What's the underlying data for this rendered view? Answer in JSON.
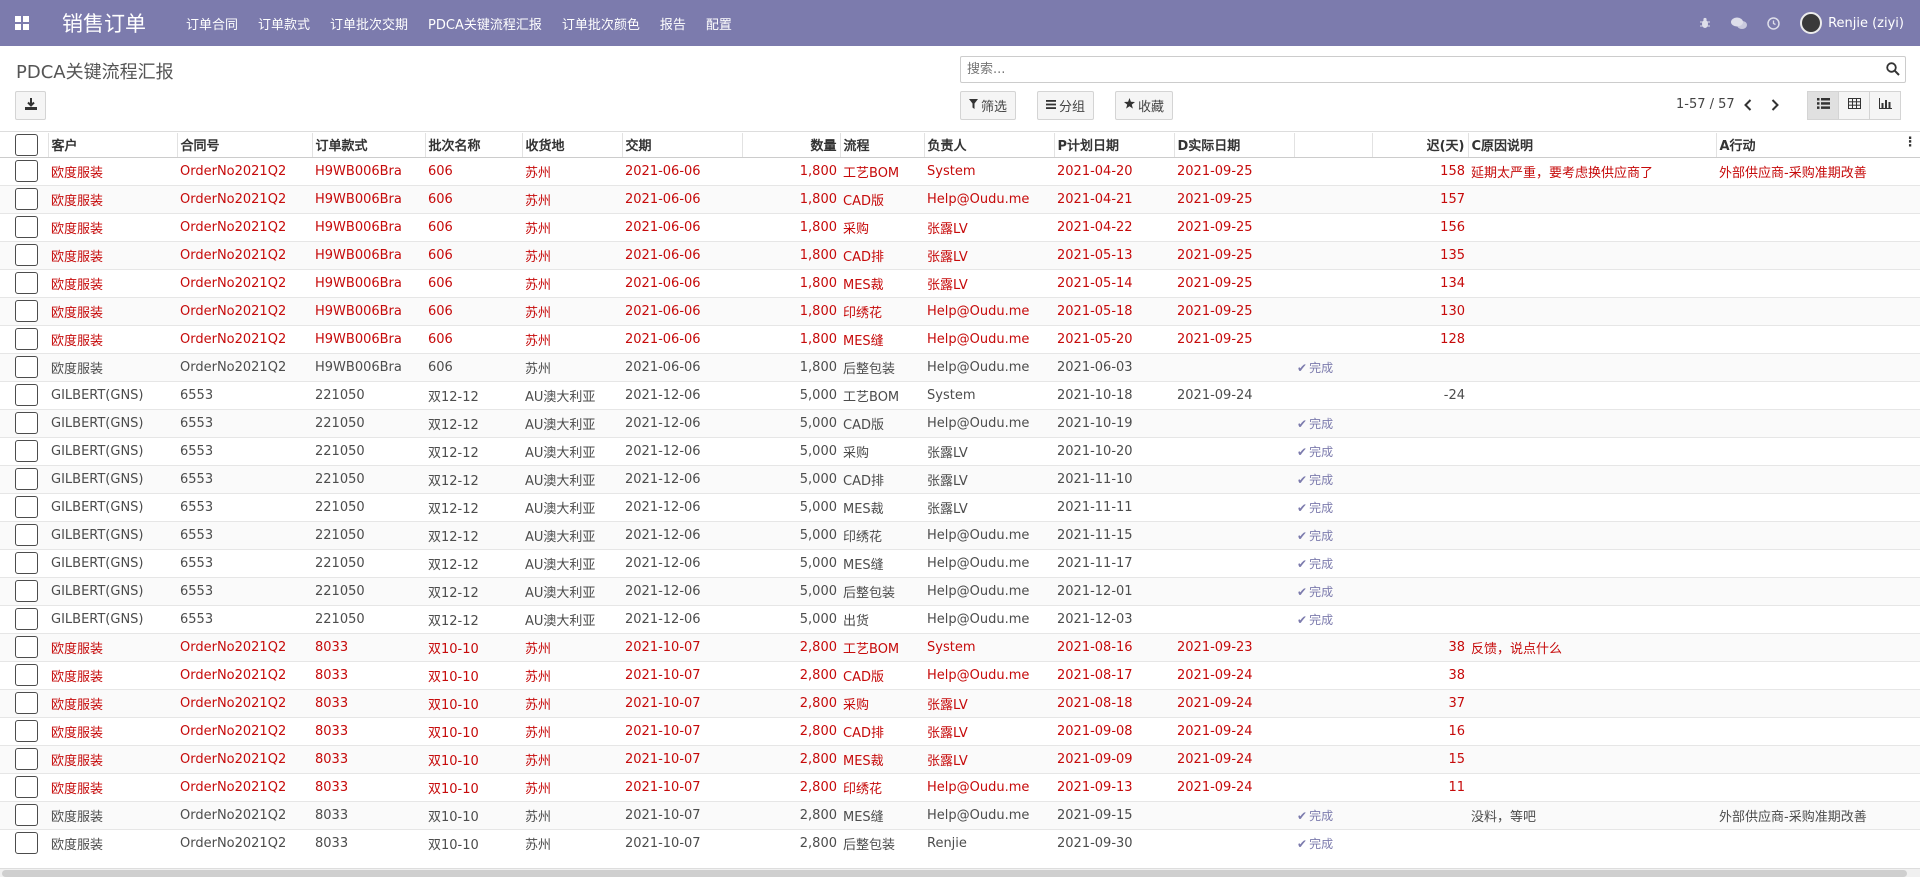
{
  "app": {
    "brand": "销售订单",
    "menu": [
      "订单合同",
      "订单款式",
      "订单批次交期",
      "PDCA关键流程汇报",
      "订单批次颜色",
      "报告",
      "配置"
    ],
    "user": "Renjie (ziyi)",
    "icons": [
      "apps-icon",
      "bug-icon",
      "chat-icon",
      "clock-icon"
    ]
  },
  "control": {
    "breadcrumb": "PDCA关键流程汇报",
    "search_placeholder": "搜索...",
    "filter_label": "筛选",
    "group_label": "分组",
    "favorite_label": "收藏",
    "pager": "1-57 / 57"
  },
  "columns": [
    "客户",
    "合同号",
    "订单款式",
    "批次名称",
    "收货地",
    "交期",
    "数量",
    "流程",
    "负责人",
    "P计划日期",
    "D实际日期",
    "",
    "迟(天)",
    "C原因说明",
    "A行动"
  ],
  "rows": [
    {
      "red": true,
      "cells": [
        "欧度服装",
        "OrderNo2021Q2",
        "H9WB006Bra",
        "606",
        "苏州",
        "2021-06-06",
        "1,800",
        "工艺BOM",
        "System",
        "2021-04-20",
        "2021-09-25",
        "",
        "158",
        "延期太严重，要考虑换供应商了",
        "外部供应商-采购准期改善"
      ]
    },
    {
      "red": true,
      "cells": [
        "欧度服装",
        "OrderNo2021Q2",
        "H9WB006Bra",
        "606",
        "苏州",
        "2021-06-06",
        "1,800",
        "CAD版",
        "Help@Oudu.me",
        "2021-04-21",
        "2021-09-25",
        "",
        "157",
        "",
        ""
      ]
    },
    {
      "red": true,
      "cells": [
        "欧度服装",
        "OrderNo2021Q2",
        "H9WB006Bra",
        "606",
        "苏州",
        "2021-06-06",
        "1,800",
        "采购",
        "张露LV",
        "2021-04-22",
        "2021-09-25",
        "",
        "156",
        "",
        ""
      ]
    },
    {
      "red": true,
      "cells": [
        "欧度服装",
        "OrderNo2021Q2",
        "H9WB006Bra",
        "606",
        "苏州",
        "2021-06-06",
        "1,800",
        "CAD排",
        "张露LV",
        "2021-05-13",
        "2021-09-25",
        "",
        "135",
        "",
        ""
      ]
    },
    {
      "red": true,
      "cells": [
        "欧度服装",
        "OrderNo2021Q2",
        "H9WB006Bra",
        "606",
        "苏州",
        "2021-06-06",
        "1,800",
        "MES裁",
        "张露LV",
        "2021-05-14",
        "2021-09-25",
        "",
        "134",
        "",
        ""
      ]
    },
    {
      "red": true,
      "cells": [
        "欧度服装",
        "OrderNo2021Q2",
        "H9WB006Bra",
        "606",
        "苏州",
        "2021-06-06",
        "1,800",
        "印绣花",
        "Help@Oudu.me",
        "2021-05-18",
        "2021-09-25",
        "",
        "130",
        "",
        ""
      ]
    },
    {
      "red": true,
      "cells": [
        "欧度服装",
        "OrderNo2021Q2",
        "H9WB006Bra",
        "606",
        "苏州",
        "2021-06-06",
        "1,800",
        "MES缝",
        "Help@Oudu.me",
        "2021-05-20",
        "2021-09-25",
        "",
        "128",
        "",
        ""
      ]
    },
    {
      "red": false,
      "cells": [
        "欧度服装",
        "OrderNo2021Q2",
        "H9WB006Bra",
        "606",
        "苏州",
        "2021-06-06",
        "1,800",
        "后整包装",
        "Help@Oudu.me",
        "2021-06-03",
        "",
        "完成",
        "",
        "",
        ""
      ]
    },
    {
      "red": false,
      "cells": [
        "GILBERT(GNS)",
        "6553",
        "221050",
        "双12-12",
        "AU澳大利亚",
        "2021-12-06",
        "5,000",
        "工艺BOM",
        "System",
        "2021-10-18",
        "2021-09-24",
        "",
        "-24",
        "",
        ""
      ]
    },
    {
      "red": false,
      "cells": [
        "GILBERT(GNS)",
        "6553",
        "221050",
        "双12-12",
        "AU澳大利亚",
        "2021-12-06",
        "5,000",
        "CAD版",
        "Help@Oudu.me",
        "2021-10-19",
        "",
        "完成",
        "",
        "",
        ""
      ]
    },
    {
      "red": false,
      "cells": [
        "GILBERT(GNS)",
        "6553",
        "221050",
        "双12-12",
        "AU澳大利亚",
        "2021-12-06",
        "5,000",
        "采购",
        "张露LV",
        "2021-10-20",
        "",
        "完成",
        "",
        "",
        ""
      ]
    },
    {
      "red": false,
      "cells": [
        "GILBERT(GNS)",
        "6553",
        "221050",
        "双12-12",
        "AU澳大利亚",
        "2021-12-06",
        "5,000",
        "CAD排",
        "张露LV",
        "2021-11-10",
        "",
        "完成",
        "",
        "",
        ""
      ]
    },
    {
      "red": false,
      "cells": [
        "GILBERT(GNS)",
        "6553",
        "221050",
        "双12-12",
        "AU澳大利亚",
        "2021-12-06",
        "5,000",
        "MES裁",
        "张露LV",
        "2021-11-11",
        "",
        "完成",
        "",
        "",
        ""
      ]
    },
    {
      "red": false,
      "cells": [
        "GILBERT(GNS)",
        "6553",
        "221050",
        "双12-12",
        "AU澳大利亚",
        "2021-12-06",
        "5,000",
        "印绣花",
        "Help@Oudu.me",
        "2021-11-15",
        "",
        "完成",
        "",
        "",
        ""
      ]
    },
    {
      "red": false,
      "cells": [
        "GILBERT(GNS)",
        "6553",
        "221050",
        "双12-12",
        "AU澳大利亚",
        "2021-12-06",
        "5,000",
        "MES缝",
        "Help@Oudu.me",
        "2021-11-17",
        "",
        "完成",
        "",
        "",
        ""
      ]
    },
    {
      "red": false,
      "cells": [
        "GILBERT(GNS)",
        "6553",
        "221050",
        "双12-12",
        "AU澳大利亚",
        "2021-12-06",
        "5,000",
        "后整包装",
        "Help@Oudu.me",
        "2021-12-01",
        "",
        "完成",
        "",
        "",
        ""
      ]
    },
    {
      "red": false,
      "cells": [
        "GILBERT(GNS)",
        "6553",
        "221050",
        "双12-12",
        "AU澳大利亚",
        "2021-12-06",
        "5,000",
        "出货",
        "Help@Oudu.me",
        "2021-12-03",
        "",
        "完成",
        "",
        "",
        ""
      ]
    },
    {
      "red": true,
      "cells": [
        "欧度服装",
        "OrderNo2021Q2",
        "8033",
        "双10-10",
        "苏州",
        "2021-10-07",
        "2,800",
        "工艺BOM",
        "System",
        "2021-08-16",
        "2021-09-23",
        "",
        "38",
        "反馈，说点什么",
        ""
      ]
    },
    {
      "red": true,
      "cells": [
        "欧度服装",
        "OrderNo2021Q2",
        "8033",
        "双10-10",
        "苏州",
        "2021-10-07",
        "2,800",
        "CAD版",
        "Help@Oudu.me",
        "2021-08-17",
        "2021-09-24",
        "",
        "38",
        "",
        ""
      ]
    },
    {
      "red": true,
      "cells": [
        "欧度服装",
        "OrderNo2021Q2",
        "8033",
        "双10-10",
        "苏州",
        "2021-10-07",
        "2,800",
        "采购",
        "张露LV",
        "2021-08-18",
        "2021-09-24",
        "",
        "37",
        "",
        ""
      ]
    },
    {
      "red": true,
      "cells": [
        "欧度服装",
        "OrderNo2021Q2",
        "8033",
        "双10-10",
        "苏州",
        "2021-10-07",
        "2,800",
        "CAD排",
        "张露LV",
        "2021-09-08",
        "2021-09-24",
        "",
        "16",
        "",
        ""
      ]
    },
    {
      "red": true,
      "cells": [
        "欧度服装",
        "OrderNo2021Q2",
        "8033",
        "双10-10",
        "苏州",
        "2021-10-07",
        "2,800",
        "MES裁",
        "张露LV",
        "2021-09-09",
        "2021-09-24",
        "",
        "15",
        "",
        ""
      ]
    },
    {
      "red": true,
      "cells": [
        "欧度服装",
        "OrderNo2021Q2",
        "8033",
        "双10-10",
        "苏州",
        "2021-10-07",
        "2,800",
        "印绣花",
        "Help@Oudu.me",
        "2021-09-13",
        "2021-09-24",
        "",
        "11",
        "",
        ""
      ]
    },
    {
      "red": false,
      "cells": [
        "欧度服装",
        "OrderNo2021Q2",
        "8033",
        "双10-10",
        "苏州",
        "2021-10-07",
        "2,800",
        "MES缝",
        "Help@Oudu.me",
        "2021-09-15",
        "",
        "完成",
        "",
        "没料，等吧",
        "外部供应商-采购准期改善"
      ]
    },
    {
      "red": false,
      "cells": [
        "欧度服装",
        "OrderNo2021Q2",
        "8033",
        "双10-10",
        "苏州",
        "2021-10-07",
        "2,800",
        "后整包装",
        "Renjie",
        "2021-09-30",
        "",
        "完成",
        "",
        "",
        ""
      ]
    }
  ]
}
